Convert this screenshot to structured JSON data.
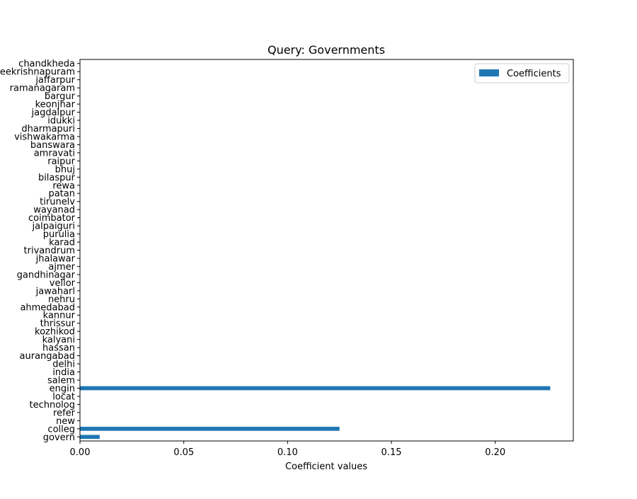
{
  "chart_data": {
    "type": "bar",
    "orientation": "horizontal",
    "title": "Query: Governments",
    "xlabel": "Coefficient values",
    "ylabel": "",
    "xlim": [
      0,
      0.2376
    ],
    "xticks": [
      0.0,
      0.05,
      0.1,
      0.15,
      0.2
    ],
    "xtick_labels": [
      "0.00",
      "0.05",
      "0.10",
      "0.15",
      "0.20"
    ],
    "legend_position": "top-right",
    "grid": false,
    "series": [
      {
        "name": "Coefficients",
        "color": "#1f77b4",
        "values": [
          0.0095,
          0.125,
          0,
          0,
          0,
          0,
          0.2265,
          0,
          0,
          0,
          0,
          0,
          0,
          0,
          0,
          0,
          0,
          0,
          0,
          0,
          0,
          0,
          0,
          0,
          0,
          0,
          0,
          0,
          0,
          0,
          0,
          0,
          0,
          0,
          0,
          0,
          0,
          0,
          0,
          0,
          0,
          0,
          0,
          0,
          0,
          0,
          0
        ]
      }
    ],
    "categories": [
      "govern",
      "colleg",
      "new",
      "refer",
      "technolog",
      "locat",
      "engin",
      "salem",
      "india",
      "delhi",
      "aurangabad",
      "hassan",
      "kalyani",
      "kozhikod",
      "thrissur",
      "kannur",
      "ahmedabad",
      "nehru",
      "jawaharl",
      "vellor",
      "gandhinagar",
      "ajmer",
      "jhalawar",
      "trivandrum",
      "karad",
      "purulia",
      "jalpaiguri",
      "coimbator",
      "wayanad",
      "tirunelv",
      "patan",
      "rewa",
      "bilaspur",
      "bhuj",
      "raipur",
      "amravati",
      "banswara",
      "vishwakarma",
      "dharmapuri",
      "idukki",
      "jagdalpur",
      "keonjhar",
      "bargur",
      "ramanagaram",
      "jaffarpur",
      "sreekrishnapuram",
      "chandkheda"
    ]
  }
}
